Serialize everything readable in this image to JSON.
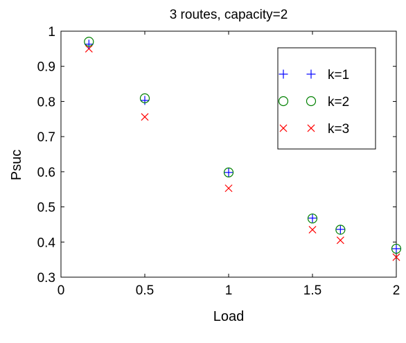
{
  "chart_data": {
    "type": "scatter",
    "title": "3 routes, capacity=2",
    "xlabel": "Load",
    "ylabel": "Psuc",
    "xlim": [
      0,
      2
    ],
    "ylim": [
      0.3,
      1
    ],
    "xticks": [
      0,
      0.5,
      1,
      1.5,
      2
    ],
    "xtick_labels": [
      "0",
      "0.5",
      "1",
      "1.5",
      "2"
    ],
    "yticks": [
      0.3,
      0.4,
      0.5,
      0.6,
      0.7,
      0.8,
      0.9,
      1
    ],
    "ytick_labels": [
      "0.3",
      "0.4",
      "0.5",
      "0.6",
      "0.7",
      "0.8",
      "0.9",
      "1"
    ],
    "grid": false,
    "legend_position": "top-right",
    "x": [
      0.1667,
      0.5,
      1.0,
      1.5,
      1.6667,
      2.0
    ],
    "series": [
      {
        "name": "k=1",
        "marker": "plus",
        "color": "#0000ff",
        "values": [
          0.963,
          0.803,
          0.598,
          0.468,
          0.436,
          0.381
        ]
      },
      {
        "name": "k=2",
        "marker": "circle",
        "color": "#008000",
        "values": [
          0.97,
          0.809,
          0.598,
          0.467,
          0.435,
          0.381
        ]
      },
      {
        "name": "k=3",
        "marker": "x",
        "color": "#ff0000",
        "values": [
          0.95,
          0.756,
          0.553,
          0.435,
          0.405,
          0.357
        ]
      }
    ]
  }
}
